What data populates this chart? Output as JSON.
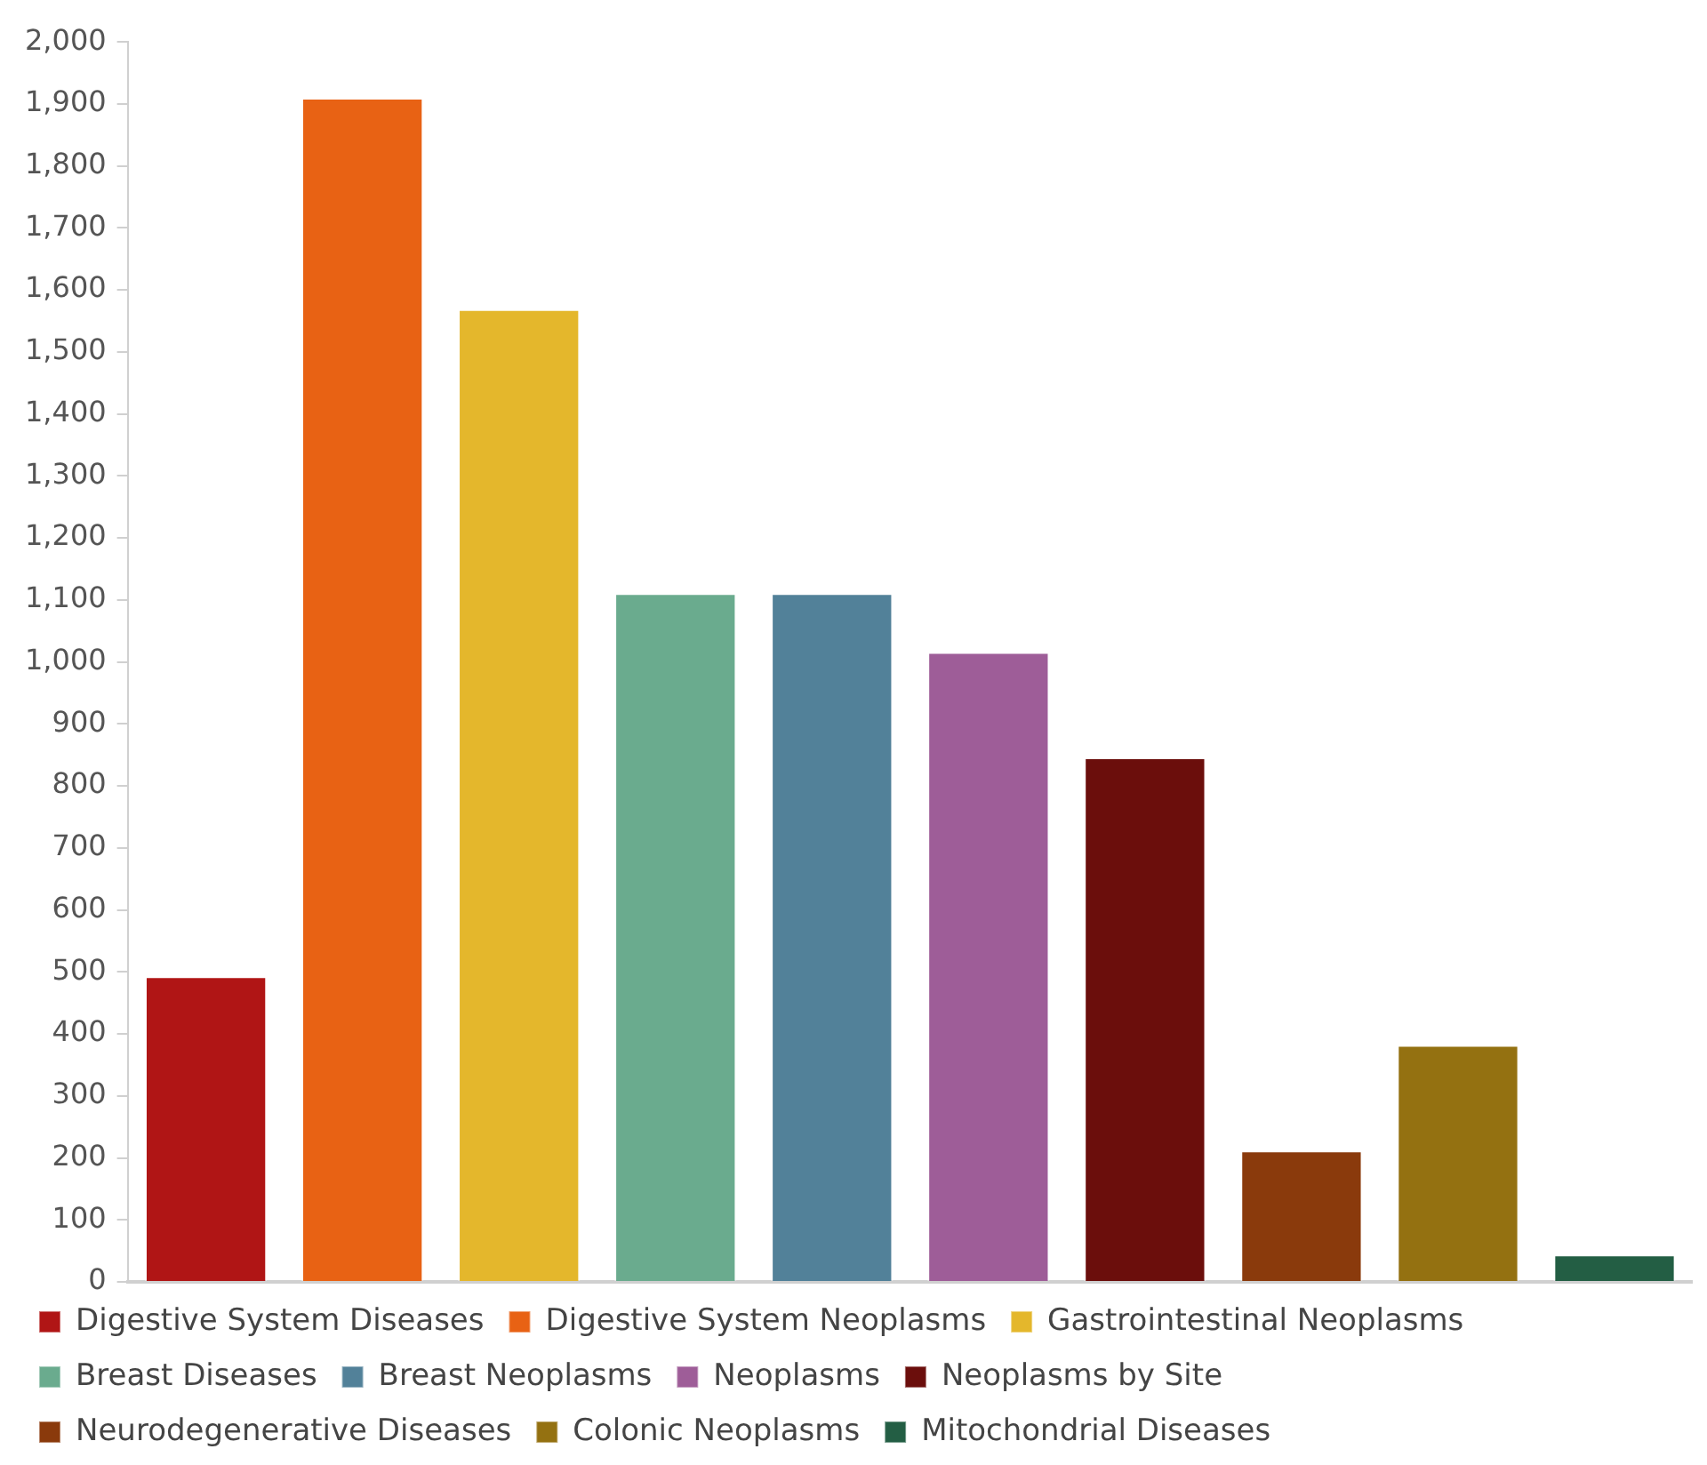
{
  "chart_data": {
    "type": "bar",
    "categories": [
      null,
      null,
      null,
      null,
      null,
      null,
      null,
      null,
      null,
      null
    ],
    "series": [
      {
        "name": "Digestive System Diseases",
        "color": "#b01515",
        "values": [
          493,
          null,
          null,
          null,
          null,
          null,
          null,
          null,
          null,
          null
        ]
      },
      {
        "name": "Digestive System Neoplasms",
        "color": "#e86214",
        "values": [
          null,
          1910,
          null,
          null,
          null,
          null,
          null,
          null,
          null,
          null
        ]
      },
      {
        "name": "Gastrointestinal Neoplasms",
        "color": "#e4b72c",
        "values": [
          null,
          null,
          1569,
          null,
          null,
          null,
          null,
          null,
          null,
          null
        ]
      },
      {
        "name": "Breast Diseases",
        "color": "#6aab8e",
        "values": [
          null,
          null,
          null,
          1111,
          null,
          null,
          null,
          null,
          null,
          null
        ]
      },
      {
        "name": "Breast Neoplasms",
        "color": "#528199",
        "values": [
          null,
          null,
          null,
          null,
          1111,
          null,
          null,
          null,
          null,
          null
        ]
      },
      {
        "name": "Neoplasms",
        "color": "#9e5d98",
        "values": [
          null,
          null,
          null,
          null,
          null,
          1016,
          null,
          null,
          null,
          null
        ]
      },
      {
        "name": "Neoplasms by Site",
        "color": "#6b0e0c",
        "values": [
          null,
          null,
          null,
          null,
          null,
          null,
          846,
          null,
          null,
          null
        ]
      },
      {
        "name": "Neurodegenerative Diseases",
        "color": "#8a3a0c",
        "values": [
          null,
          null,
          null,
          null,
          null,
          null,
          null,
          212,
          null,
          null
        ]
      },
      {
        "name": "Colonic Neoplasms",
        "color": "#947111",
        "values": [
          null,
          null,
          null,
          null,
          null,
          null,
          null,
          null,
          382,
          null
        ]
      },
      {
        "name": "Mitochondrial Diseases",
        "color": "#235e44",
        "values": [
          null,
          null,
          null,
          null,
          null,
          null,
          null,
          null,
          null,
          44
        ]
      }
    ],
    "ylim": [
      0,
      2000
    ],
    "yticks": [
      {
        "value": 0,
        "label": "0"
      },
      {
        "value": 100,
        "label": "100"
      },
      {
        "value": 200,
        "label": "200"
      },
      {
        "value": 300,
        "label": "300"
      },
      {
        "value": 400,
        "label": "400"
      },
      {
        "value": 500,
        "label": "500"
      },
      {
        "value": 600,
        "label": "600"
      },
      {
        "value": 700,
        "label": "700"
      },
      {
        "value": 800,
        "label": "800"
      },
      {
        "value": 900,
        "label": "900"
      },
      {
        "value": 1000,
        "label": "1,000"
      },
      {
        "value": 1100,
        "label": "1,100"
      },
      {
        "value": 1200,
        "label": "1,200"
      },
      {
        "value": 1300,
        "label": "1,300"
      },
      {
        "value": 1400,
        "label": "1,400"
      },
      {
        "value": 1500,
        "label": "1,500"
      },
      {
        "value": 1600,
        "label": "1,600"
      },
      {
        "value": 1700,
        "label": "1,700"
      },
      {
        "value": 1800,
        "label": "1,800"
      },
      {
        "value": 1900,
        "label": "1,900"
      },
      {
        "value": 2000,
        "label": "2,000"
      }
    ],
    "grid": false,
    "legend": "bottom",
    "tick_labels": "y"
  }
}
